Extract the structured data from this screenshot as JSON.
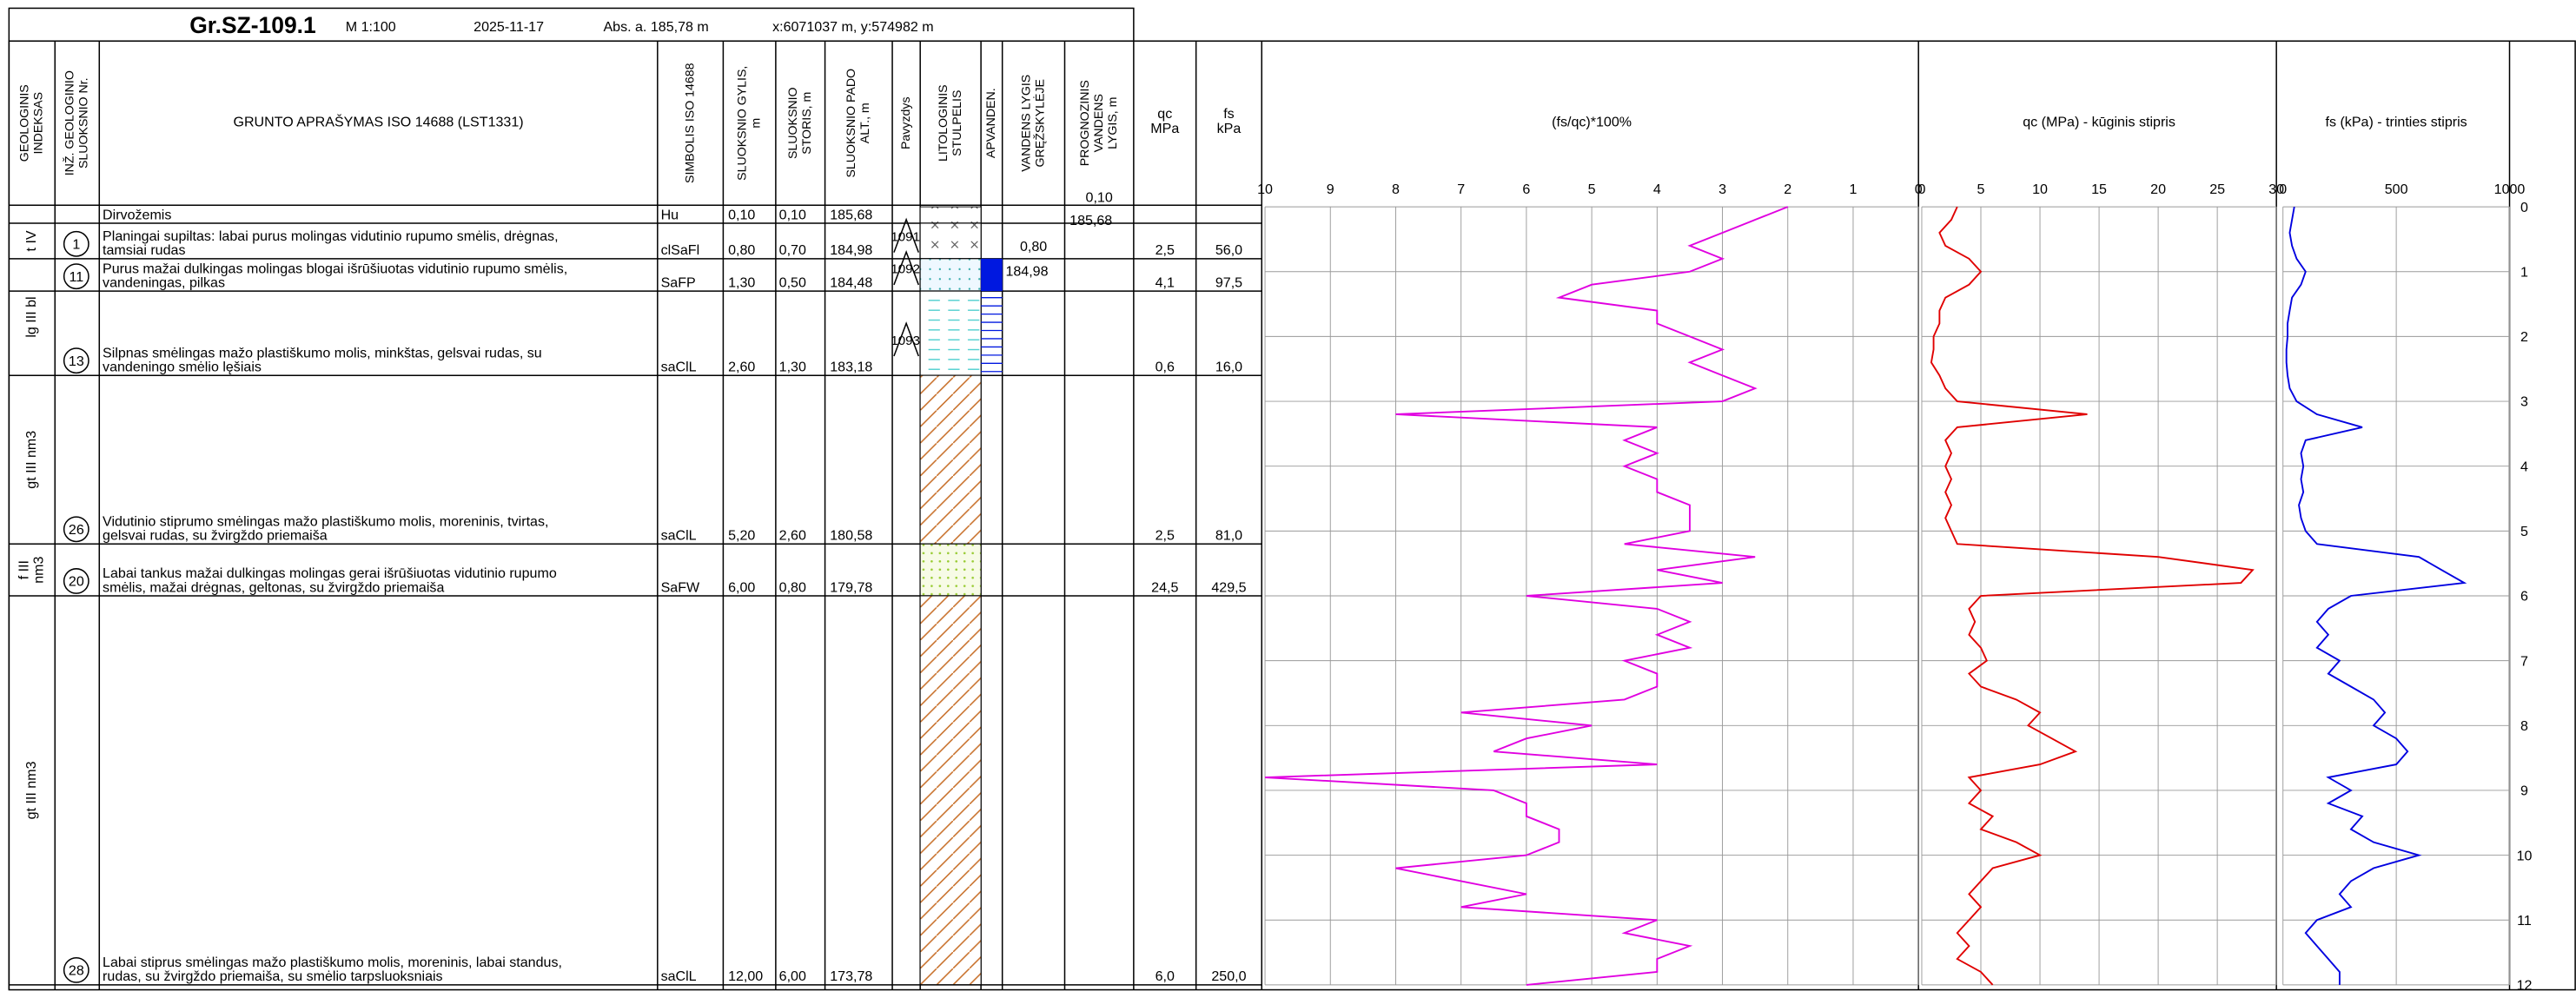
{
  "header": {
    "title": "Gr.SZ-109.1",
    "scale": "M 1:100",
    "date": "2025-11-17",
    "abs": "Abs. a. 185,78 m",
    "coords": "x:6071037 m, y:574982 m"
  },
  "table": {
    "columns": [
      [
        "GEOLOGINIS",
        "INDEKSAS"
      ],
      [
        "INŽ. GEOLOGINIO",
        "SLUOKSNIO Nr."
      ],
      [
        "GRUNTO APRAŠYMAS ISO 14688 (LST1331)"
      ],
      [
        "SIMBOLIS ISO 14688"
      ],
      [
        "SLUOKSNIO GYLIS,",
        "m"
      ],
      [
        "SLUOKSNIO",
        "STORIS, m"
      ],
      [
        "SLUOKSNIO PADO",
        "ALT., m"
      ],
      [
        "Pavyzdys"
      ],
      [
        "LITOLOGINIS",
        "STULPELIS"
      ],
      [
        "APVANDEN."
      ],
      [
        "VANDENS LYGIS",
        "GRĘŽSKYLĖJE"
      ],
      [
        "PROGNOZINIS",
        "VANDENS",
        "LYGIS, m"
      ],
      [
        "qc",
        "MPa"
      ],
      [
        "fs",
        "kPa"
      ]
    ],
    "rows": [
      {
        "description": [
          "Dirvožemis"
        ],
        "symbol": "Hu",
        "depth": "0,10",
        "thickness": "0,10",
        "alt": "185,68"
      },
      {
        "index": [
          "t IV"
        ],
        "no": "1",
        "description": [
          "Planingai supiltas: labai purus molingas vidutinio rupumo smėlis, drėgnas,",
          "tamsiai rudas"
        ],
        "symbol": "clSaFl",
        "depth": "0,80",
        "thickness": "0,70",
        "alt": "184,98",
        "qc": "2,5",
        "fs": "56,0"
      },
      {
        "index": [
          "lg III bl"
        ],
        "no": "11",
        "description": [
          "Purus mažai dulkingas molingas blogai išrūšiuotas vidutinio rupumo smėlis,",
          "vandeningas, pilkas"
        ],
        "symbol": "SaFP",
        "depth": "1,30",
        "thickness": "0,50",
        "alt": "184,48",
        "qc": "4,1",
        "fs": "97,5"
      },
      {
        "no": "13",
        "description": [
          "Silpnas smėlingas mažo plastiškumo molis, minkštas, gelsvai rudas, su",
          "vandeningo smėlio lęšiais"
        ],
        "symbol": "saClL",
        "depth": "2,60",
        "thickness": "1,30",
        "alt": "183,18",
        "qc": "0,6",
        "fs": "16,0"
      },
      {
        "index": [
          "gt III nm3"
        ],
        "no": "26",
        "description": [
          "Vidutinio stiprumo smėlingas mažo plastiškumo molis, moreninis, tvirtas,",
          "gelsvai rudas, su žvirgždo priemaiša"
        ],
        "symbol": "saClL",
        "depth": "5,20",
        "thickness": "2,60",
        "alt": "180,58",
        "qc": "2,5",
        "fs": "81,0"
      },
      {
        "index": [
          "f III",
          "nm3"
        ],
        "no": "20",
        "description": [
          "Labai tankus mažai dulkingas molingas gerai išrūšiuotas vidutinio rupumo",
          "smėlis, mažai drėgnas, geltonas, su žvirgždo priemaiša"
        ],
        "symbol": "SaFW",
        "depth": "6,00",
        "thickness": "0,80",
        "alt": "179,78",
        "qc": "24,5",
        "fs": "429,5"
      },
      {
        "index": [
          "gt III nm3"
        ],
        "no": "28",
        "description": [
          "Labai stiprus smėlingas mažo plastiškumo molis, moreninis, labai standus,",
          "rudas, su žvirgždo priemaiša, su smėlio tarpsluoksniais"
        ],
        "symbol": "saClL",
        "depth": "12,00",
        "thickness": "6,00",
        "alt": "173,78",
        "qc": "6,0",
        "fs": "250,0"
      }
    ],
    "samples": [
      "1091",
      "1092",
      "1093"
    ],
    "water": {
      "measured": "0,80",
      "measured_alt": "184,98",
      "forecast": "0,10",
      "forecast_alt": "185,68"
    }
  },
  "chart_data": [
    {
      "type": "line",
      "title": "(fs/qc)*100%",
      "xlim": [
        10,
        0
      ],
      "xticks": [
        10,
        9,
        8,
        7,
        6,
        5,
        4,
        3,
        2,
        1,
        0
      ],
      "ylim": [
        0,
        12
      ],
      "yticks": [
        0,
        1,
        2,
        3,
        4,
        5,
        6,
        7,
        8,
        9,
        10,
        11,
        12
      ],
      "grid": true,
      "y": [
        0,
        0.2,
        0.4,
        0.6,
        0.8,
        1,
        1.2,
        1.4,
        1.6,
        1.8,
        2,
        2.2,
        2.4,
        2.6,
        2.8,
        3,
        3.2,
        3.4,
        3.6,
        3.8,
        4,
        4.2,
        4.4,
        4.6,
        4.8,
        5,
        5.2,
        5.4,
        5.6,
        5.8,
        6,
        6.2,
        6.4,
        6.6,
        6.8,
        7,
        7.2,
        7.4,
        7.6,
        7.8,
        8,
        8.2,
        8.4,
        8.6,
        8.8,
        9,
        9.2,
        9.4,
        9.6,
        9.8,
        10,
        10.2,
        10.4,
        10.6,
        10.8,
        11,
        11.2,
        11.4,
        11.6,
        11.8,
        12
      ],
      "series": [
        {
          "color": "#e000e0",
          "values": [
            2,
            2.5,
            3,
            3.5,
            3,
            3.5,
            5,
            5.5,
            4,
            4,
            3.5,
            3,
            3.5,
            3,
            2.5,
            3,
            8,
            4,
            4.5,
            4,
            4.5,
            4,
            4,
            3.5,
            3.5,
            3.5,
            4.5,
            2.5,
            4,
            3,
            6,
            4,
            3.5,
            4,
            3.5,
            4.5,
            4,
            4,
            4.5,
            7,
            5,
            6,
            6.5,
            4,
            10,
            6.5,
            6,
            6,
            5.5,
            5.5,
            6,
            8,
            7,
            6,
            7,
            4,
            4.5,
            3.5,
            4,
            4,
            6
          ]
        }
      ]
    },
    {
      "type": "line",
      "title": "qc (MPa) - kūginis stipris",
      "xlim": [
        0,
        30
      ],
      "xticks": [
        0,
        5,
        10,
        15,
        20,
        25,
        30
      ],
      "grid": true,
      "series": [
        {
          "color": "#e00000",
          "values": [
            3,
            2.5,
            1.5,
            2,
            4,
            5,
            4,
            2,
            1.5,
            1.5,
            1,
            1,
            0.8,
            1.5,
            2,
            3,
            14,
            3,
            2,
            2.5,
            2,
            2.5,
            2,
            2.5,
            2,
            2.5,
            3,
            20,
            28,
            27,
            5,
            4,
            4.5,
            4,
            5,
            5.5,
            4,
            5,
            8,
            10,
            9,
            11,
            13,
            10,
            4,
            5,
            4,
            6,
            5,
            8,
            10,
            6,
            5,
            4,
            5,
            4,
            3,
            4,
            3,
            5,
            6
          ]
        }
      ]
    },
    {
      "type": "line",
      "title": "fs (kPa) - trinties stipris",
      "xlim": [
        0,
        1000
      ],
      "xticks": [
        0,
        500,
        1000
      ],
      "grid": true,
      "series": [
        {
          "color": "#0000e0",
          "values": [
            50,
            40,
            30,
            40,
            60,
            100,
            80,
            40,
            30,
            20,
            20,
            15,
            15,
            20,
            30,
            60,
            150,
            350,
            100,
            80,
            90,
            80,
            90,
            70,
            80,
            100,
            150,
            600,
            700,
            800,
            300,
            200,
            150,
            200,
            150,
            250,
            200,
            300,
            400,
            450,
            400,
            500,
            550,
            500,
            200,
            300,
            200,
            350,
            300,
            400,
            600,
            400,
            300,
            250,
            300,
            150,
            100,
            150,
            200,
            250,
            250
          ]
        }
      ]
    }
  ]
}
